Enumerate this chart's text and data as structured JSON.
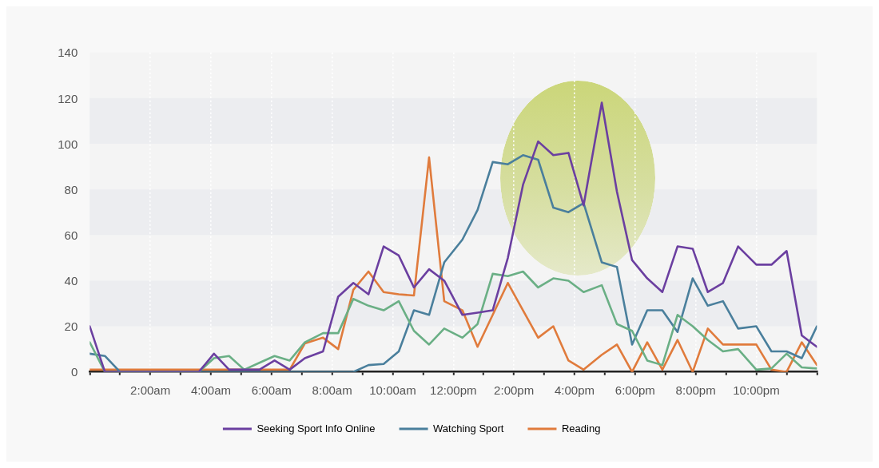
{
  "chart_data": {
    "type": "line",
    "x": [
      0,
      0.5,
      1.0,
      1.5,
      2.0,
      2.6,
      3.1,
      3.6,
      4.1,
      4.6,
      5.1,
      5.6,
      6.1,
      6.6,
      7.1,
      7.7,
      8.2,
      8.7,
      9.2,
      9.7,
      10.2,
      10.7,
      11.2,
      11.7,
      12.3,
      12.8,
      13.3,
      13.8,
      14.3,
      14.8,
      15.3,
      15.8,
      16.3,
      16.9,
      17.4,
      17.9,
      18.4,
      18.9,
      19.4,
      19.9,
      20.4,
      20.9,
      21.4,
      22.0,
      22.5,
      23.0,
      23.5,
      24
    ],
    "xlim": [
      0,
      24
    ],
    "xticks": [
      {
        "value": 0,
        "label": null
      },
      {
        "value": 1,
        "label": null
      },
      {
        "value": 2,
        "label": "2:00am"
      },
      {
        "value": 3,
        "label": null
      },
      {
        "value": 4,
        "label": "4:00am"
      },
      {
        "value": 5,
        "label": null
      },
      {
        "value": 6,
        "label": "6:00am"
      },
      {
        "value": 7,
        "label": null
      },
      {
        "value": 8,
        "label": "8:00am"
      },
      {
        "value": 9,
        "label": null
      },
      {
        "value": 10,
        "label": "10:00am"
      },
      {
        "value": 11,
        "label": null
      },
      {
        "value": 12,
        "label": "12:00pm"
      },
      {
        "value": 13,
        "label": null
      },
      {
        "value": 14,
        "label": "2:00pm"
      },
      {
        "value": 15,
        "label": null
      },
      {
        "value": 16,
        "label": "4:00pm"
      },
      {
        "value": 17,
        "label": null
      },
      {
        "value": 18,
        "label": "6:00pm"
      },
      {
        "value": 19,
        "label": null
      },
      {
        "value": 20,
        "label": "8:00pm"
      },
      {
        "value": 21,
        "label": null
      },
      {
        "value": 22,
        "label": "10:00pm"
      },
      {
        "value": 23,
        "label": null
      },
      {
        "value": 24,
        "label": null
      }
    ],
    "ylim": [
      0,
      140
    ],
    "yticks": [
      0,
      20,
      40,
      60,
      80,
      100,
      120,
      140
    ],
    "series": [
      {
        "name": "Seeking Sport Info Online",
        "color": "#6b3fa0",
        "values": [
          20,
          0,
          0,
          0,
          0,
          0,
          0,
          0,
          8,
          1,
          1,
          1,
          5,
          1,
          6,
          9,
          33,
          39,
          34,
          55,
          51,
          37,
          45,
          40,
          25,
          26,
          27,
          50,
          82,
          101,
          95,
          96,
          73,
          118,
          79,
          49,
          41,
          35,
          55,
          54,
          35,
          39,
          55,
          47,
          47,
          53,
          16,
          11
        ]
      },
      {
        "color": "#6aaf85",
        "values": [
          13,
          0,
          0,
          0,
          0,
          0,
          0,
          0,
          6,
          7,
          1,
          4,
          7,
          5,
          13,
          17,
          17,
          32,
          29,
          27,
          31,
          18,
          12,
          19,
          15,
          21,
          43,
          42,
          44,
          37,
          41,
          40,
          35,
          38,
          21,
          18,
          5,
          3,
          25,
          20,
          14,
          9,
          10,
          1,
          1.5,
          8,
          2,
          1.5
        ]
      },
      {
        "name": "Watching Sport",
        "color": "#4a7f9c",
        "values": [
          8,
          7,
          0,
          0,
          0,
          0,
          0,
          0,
          0,
          0,
          0,
          0,
          0,
          0,
          0,
          0,
          0,
          0,
          3,
          3.5,
          9,
          27,
          25,
          48,
          58,
          71,
          92,
          91,
          95,
          93,
          72,
          70,
          74,
          48,
          46,
          12,
          27,
          27,
          17.5,
          41,
          29,
          31,
          19,
          20,
          9,
          9,
          6,
          20
        ]
      },
      {
        "name": "Reading",
        "color": "#e07b3c",
        "values": [
          1,
          1,
          1,
          1,
          1,
          1,
          1,
          1,
          1,
          1,
          1,
          1,
          1,
          1,
          12.5,
          15,
          10,
          36,
          44,
          35,
          34,
          33.5,
          94,
          31,
          27,
          11,
          25,
          39,
          27,
          15,
          20,
          5,
          1,
          7.5,
          12,
          0,
          13,
          1,
          14,
          0,
          19,
          12,
          12,
          12,
          1,
          0,
          13,
          3
        ]
      }
    ],
    "bands": [
      {
        "axis": "y",
        "from": 20,
        "to": 40,
        "color": "#ecedf0"
      },
      {
        "axis": "y",
        "from": 60,
        "to": 80,
        "color": "#ecedf0"
      },
      {
        "axis": "y",
        "from": 100,
        "to": 120,
        "color": "#ecedf0"
      }
    ],
    "legend": "bottom",
    "grid": "x",
    "marker": "none",
    "line_style": "solid"
  }
}
